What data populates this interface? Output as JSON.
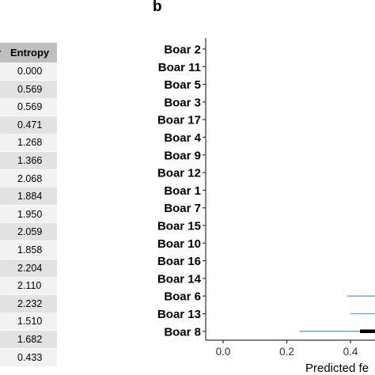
{
  "table": {
    "header": "Entropy",
    "header_prev": "r",
    "values": [
      "0.000",
      "0.569",
      "0.569",
      "0.471",
      "1.268",
      "1.366",
      "2.068",
      "1.884",
      "1.950",
      "2.059",
      "1.858",
      "2.204",
      "2.110",
      "2.232",
      "1.510",
      "1.682",
      "0.433"
    ]
  },
  "panel_label": "b",
  "chart_data": {
    "type": "scatter",
    "categories": [
      "Boar 2",
      "Boar 11",
      "Boar 5",
      "Boar 3",
      "Boar 17",
      "Boar 4",
      "Boar 9",
      "Boar 12",
      "Boar 1",
      "Boar 7",
      "Boar 15",
      "Boar 10",
      "Boar 16",
      "Boar 14",
      "Boar 6",
      "Boar 13",
      "Boar 8"
    ],
    "x_ticks": [
      "0.0",
      "0.2",
      "0.4"
    ],
    "xlim": [
      -0.03,
      0.55
    ],
    "xlabel": "Predicted fe",
    "intervals": [
      {
        "category": "Boar 6",
        "thin": [
          0.39,
          0.55
        ]
      },
      {
        "category": "Boar 13",
        "thin": [
          0.4,
          0.55
        ]
      },
      {
        "category": "Boar 8",
        "thin": [
          0.24,
          0.55
        ],
        "thick": [
          0.43,
          0.55
        ]
      }
    ],
    "colors": {
      "interval_thin": "#5da5d6",
      "interval_thick": "#000000",
      "axis": "#333333"
    }
  }
}
